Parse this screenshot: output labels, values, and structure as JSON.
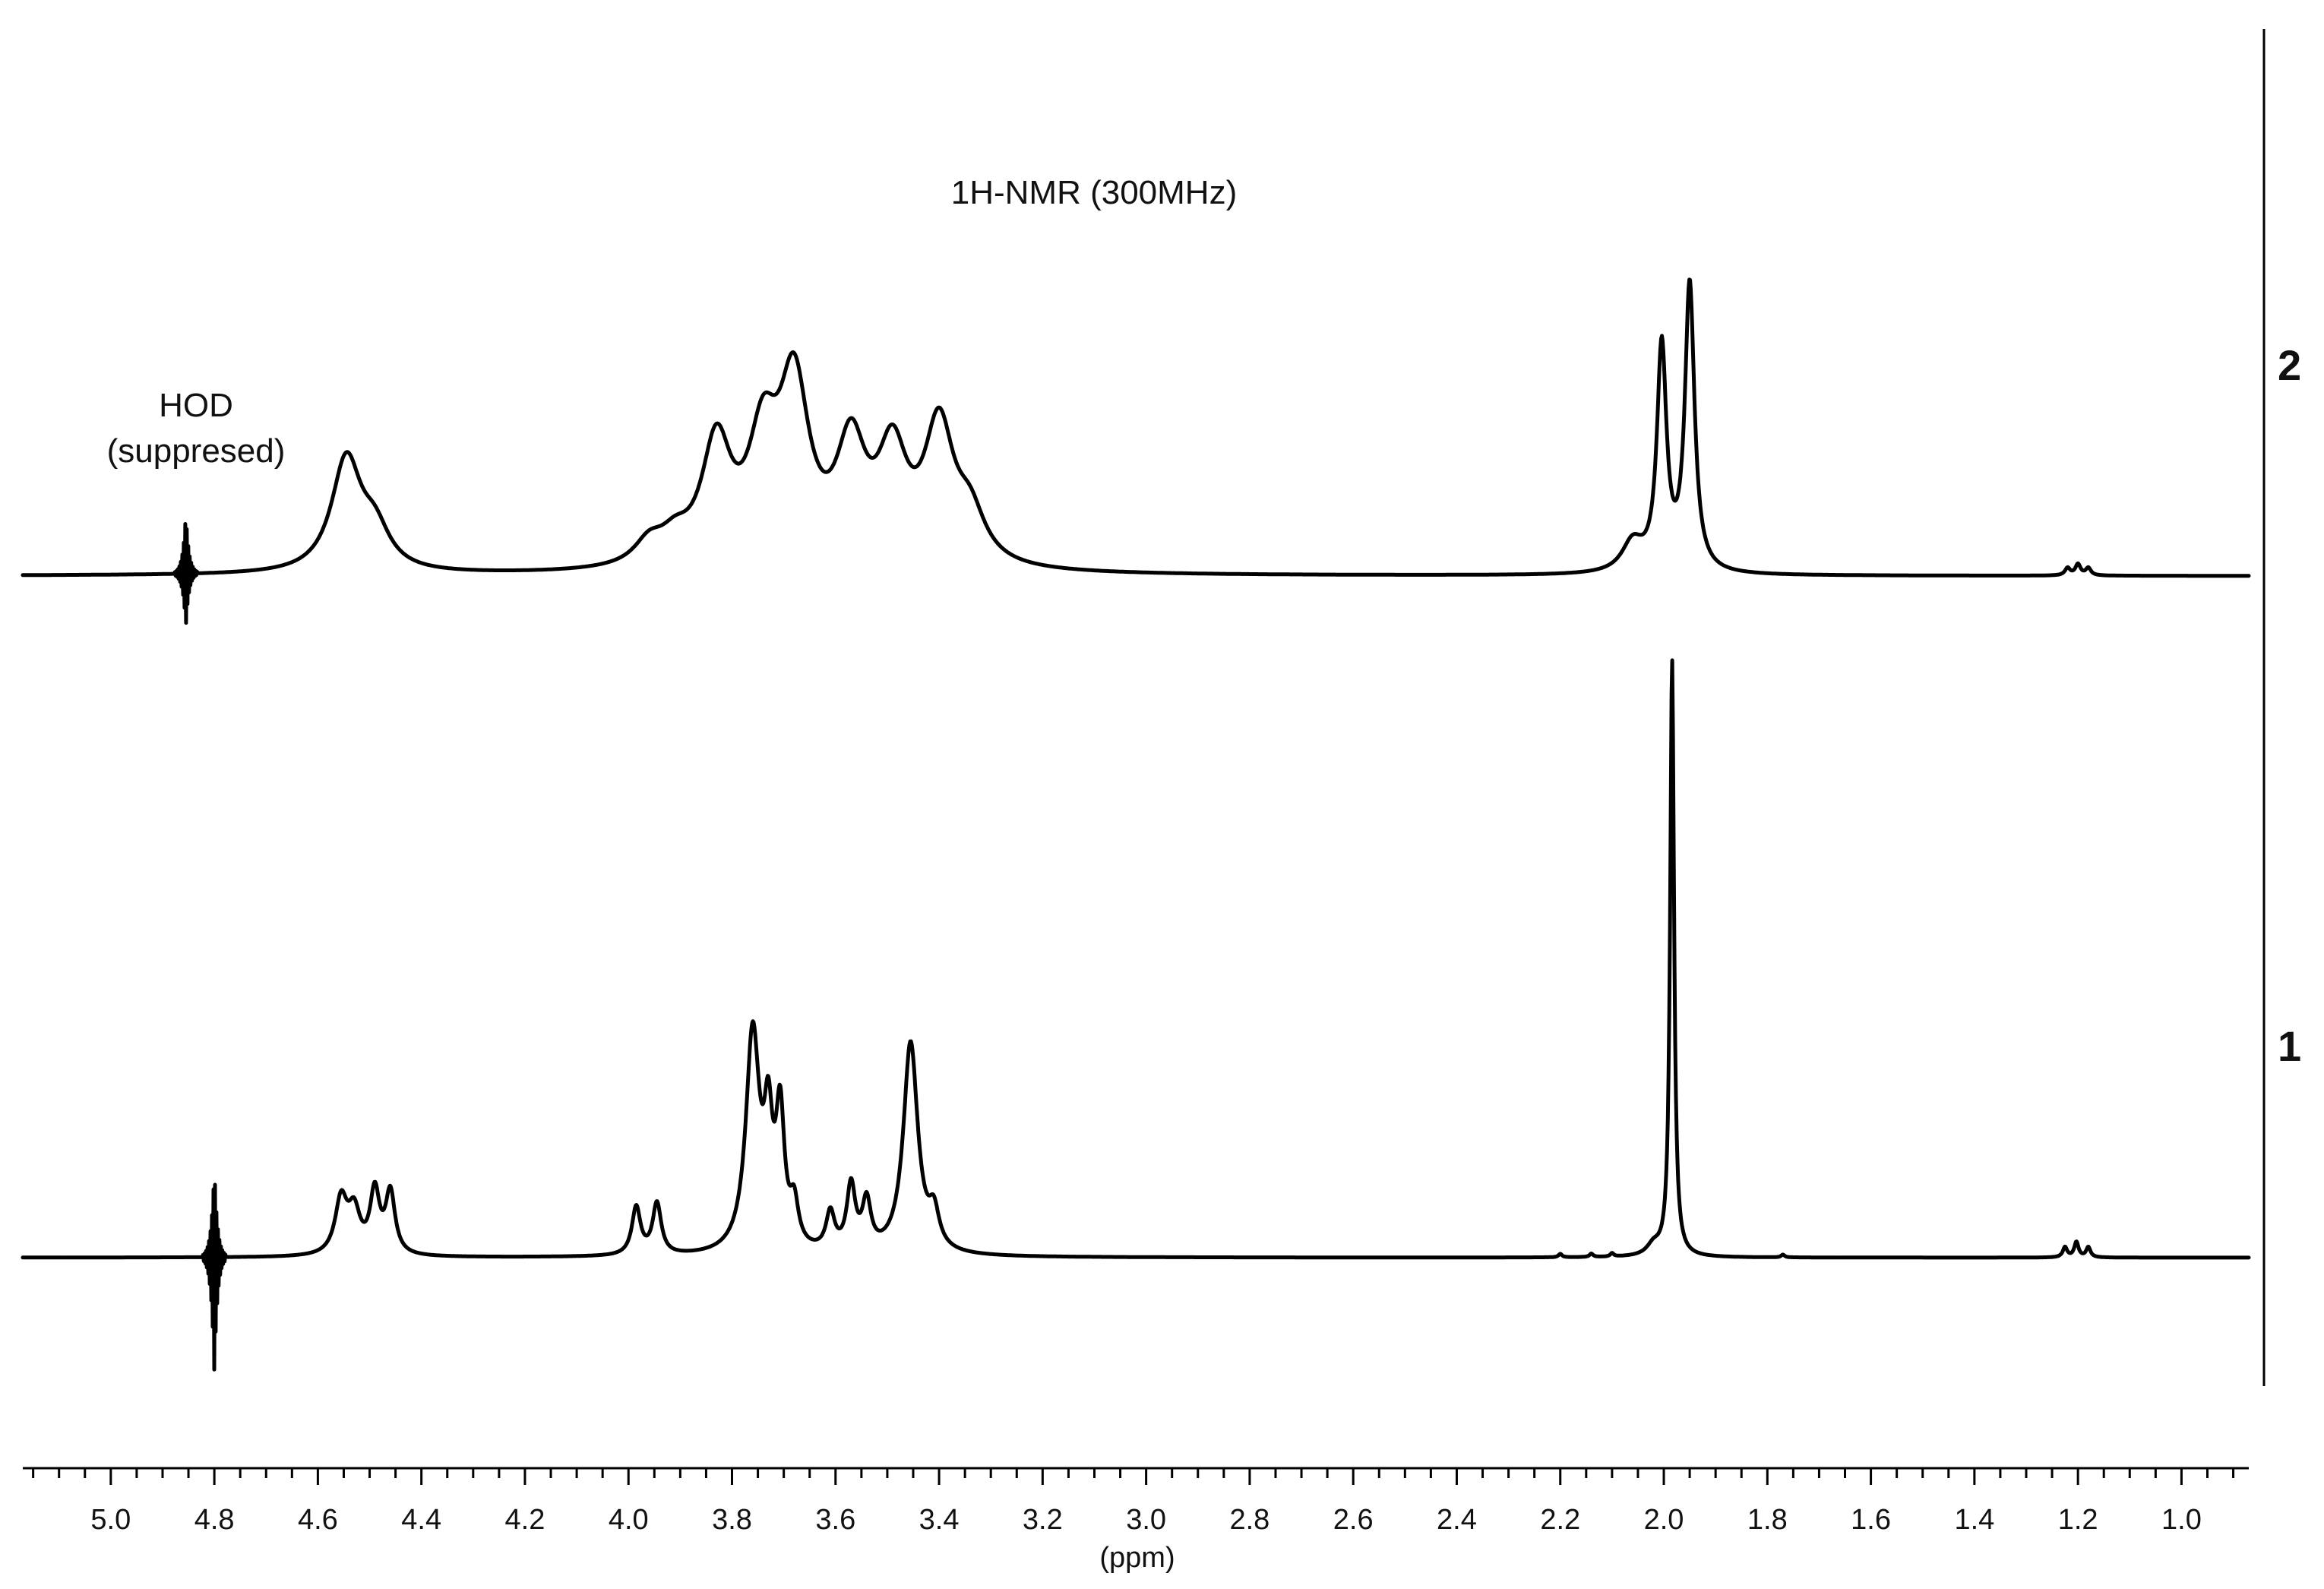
{
  "chart_data": {
    "type": "line",
    "title": "1H-NMR (300MHz)",
    "xlabel": "(ppm)",
    "ylabel": "",
    "x_reversed": true,
    "xlim": [
      5.17,
      0.87
    ],
    "x_ticks": [
      {
        "value": 5.0,
        "label": "5.0"
      },
      {
        "value": 4.8,
        "label": "4.8"
      },
      {
        "value": 4.6,
        "label": "4.6"
      },
      {
        "value": 4.4,
        "label": "4.4"
      },
      {
        "value": 4.2,
        "label": "4.2"
      },
      {
        "value": 4.0,
        "label": "4.0"
      },
      {
        "value": 3.8,
        "label": "3.8"
      },
      {
        "value": 3.6,
        "label": "3.6"
      },
      {
        "value": 3.4,
        "label": "3.4"
      },
      {
        "value": 3.2,
        "label": "3.2"
      },
      {
        "value": 3.0,
        "label": "3.0"
      },
      {
        "value": 2.8,
        "label": "2.8"
      },
      {
        "value": 2.6,
        "label": "2.6"
      },
      {
        "value": 2.4,
        "label": "2.4"
      },
      {
        "value": 2.2,
        "label": "2.2"
      },
      {
        "value": 2.0,
        "label": "2.0"
      },
      {
        "value": 1.8,
        "label": "1.8"
      },
      {
        "value": 1.6,
        "label": "1.6"
      },
      {
        "value": 1.4,
        "label": "1.4"
      },
      {
        "value": 1.2,
        "label": "1.2"
      },
      {
        "value": 1.0,
        "label": "1.0"
      }
    ],
    "annotations": [
      {
        "text": "HOD",
        "line": 1
      },
      {
        "text": "(suppresed)",
        "line": 2
      }
    ],
    "series": [
      {
        "name": "2",
        "baseline": 0.0,
        "peaks": [
          {
            "ppm": 4.545,
            "width": 0.035,
            "height": 0.3
          },
          {
            "ppm": 4.49,
            "width": 0.035,
            "height": 0.1
          },
          {
            "ppm": 3.96,
            "width": 0.035,
            "height": 0.06
          },
          {
            "ppm": 3.91,
            "width": 0.035,
            "height": 0.06
          },
          {
            "ppm": 3.83,
            "width": 0.035,
            "height": 0.32
          },
          {
            "ppm": 3.74,
            "width": 0.035,
            "height": 0.3
          },
          {
            "ppm": 3.68,
            "width": 0.035,
            "height": 0.46
          },
          {
            "ppm": 3.57,
            "width": 0.035,
            "height": 0.3
          },
          {
            "ppm": 3.49,
            "width": 0.035,
            "height": 0.28
          },
          {
            "ppm": 3.4,
            "width": 0.035,
            "height": 0.36
          },
          {
            "ppm": 3.34,
            "width": 0.035,
            "height": 0.12
          },
          {
            "ppm": 2.06,
            "width": 0.025,
            "height": 0.08
          },
          {
            "ppm": 2.004,
            "width": 0.011,
            "height": 0.6
          },
          {
            "ppm": 1.95,
            "width": 0.011,
            "height": 0.77
          },
          {
            "ppm": 1.22,
            "width": 0.006,
            "height": 0.02
          },
          {
            "ppm": 1.2,
            "width": 0.006,
            "height": 0.03
          },
          {
            "ppm": 1.18,
            "width": 0.006,
            "height": 0.02
          }
        ],
        "artifact": {
          "ppm": 4.855,
          "up": 0.16,
          "down": 0.14
        }
      },
      {
        "name": "1",
        "baseline": 0.0,
        "peaks": [
          {
            "ppm": 4.555,
            "width": 0.014,
            "height": 0.16
          },
          {
            "ppm": 4.53,
            "width": 0.014,
            "height": 0.12
          },
          {
            "ppm": 4.49,
            "width": 0.011,
            "height": 0.18
          },
          {
            "ppm": 4.46,
            "width": 0.011,
            "height": 0.18
          },
          {
            "ppm": 3.985,
            "width": 0.01,
            "height": 0.14
          },
          {
            "ppm": 3.945,
            "width": 0.01,
            "height": 0.15
          },
          {
            "ppm": 3.76,
            "width": 0.016,
            "height": 0.64
          },
          {
            "ppm": 3.73,
            "width": 0.01,
            "height": 0.32
          },
          {
            "ppm": 3.707,
            "width": 0.01,
            "height": 0.38
          },
          {
            "ppm": 3.68,
            "width": 0.01,
            "height": 0.12
          },
          {
            "ppm": 3.61,
            "width": 0.01,
            "height": 0.11
          },
          {
            "ppm": 3.57,
            "width": 0.01,
            "height": 0.19
          },
          {
            "ppm": 3.54,
            "width": 0.01,
            "height": 0.14
          },
          {
            "ppm": 3.455,
            "width": 0.017,
            "height": 0.62
          },
          {
            "ppm": 3.41,
            "width": 0.012,
            "height": 0.1
          },
          {
            "ppm": 2.02,
            "width": 0.015,
            "height": 0.03
          },
          {
            "ppm": 1.984,
            "width": 0.0045,
            "height": 1.75
          },
          {
            "ppm": 2.2,
            "width": 0.004,
            "height": 0.01
          },
          {
            "ppm": 2.14,
            "width": 0.004,
            "height": 0.01
          },
          {
            "ppm": 2.1,
            "width": 0.004,
            "height": 0.01
          },
          {
            "ppm": 1.77,
            "width": 0.004,
            "height": 0.008
          },
          {
            "ppm": 1.225,
            "width": 0.005,
            "height": 0.03
          },
          {
            "ppm": 1.203,
            "width": 0.005,
            "height": 0.045
          },
          {
            "ppm": 1.18,
            "width": 0.005,
            "height": 0.03
          }
        ],
        "artifact": {
          "ppm": 4.8,
          "up": 0.26,
          "down": 0.34
        }
      }
    ],
    "grid": false,
    "legend": "none"
  }
}
